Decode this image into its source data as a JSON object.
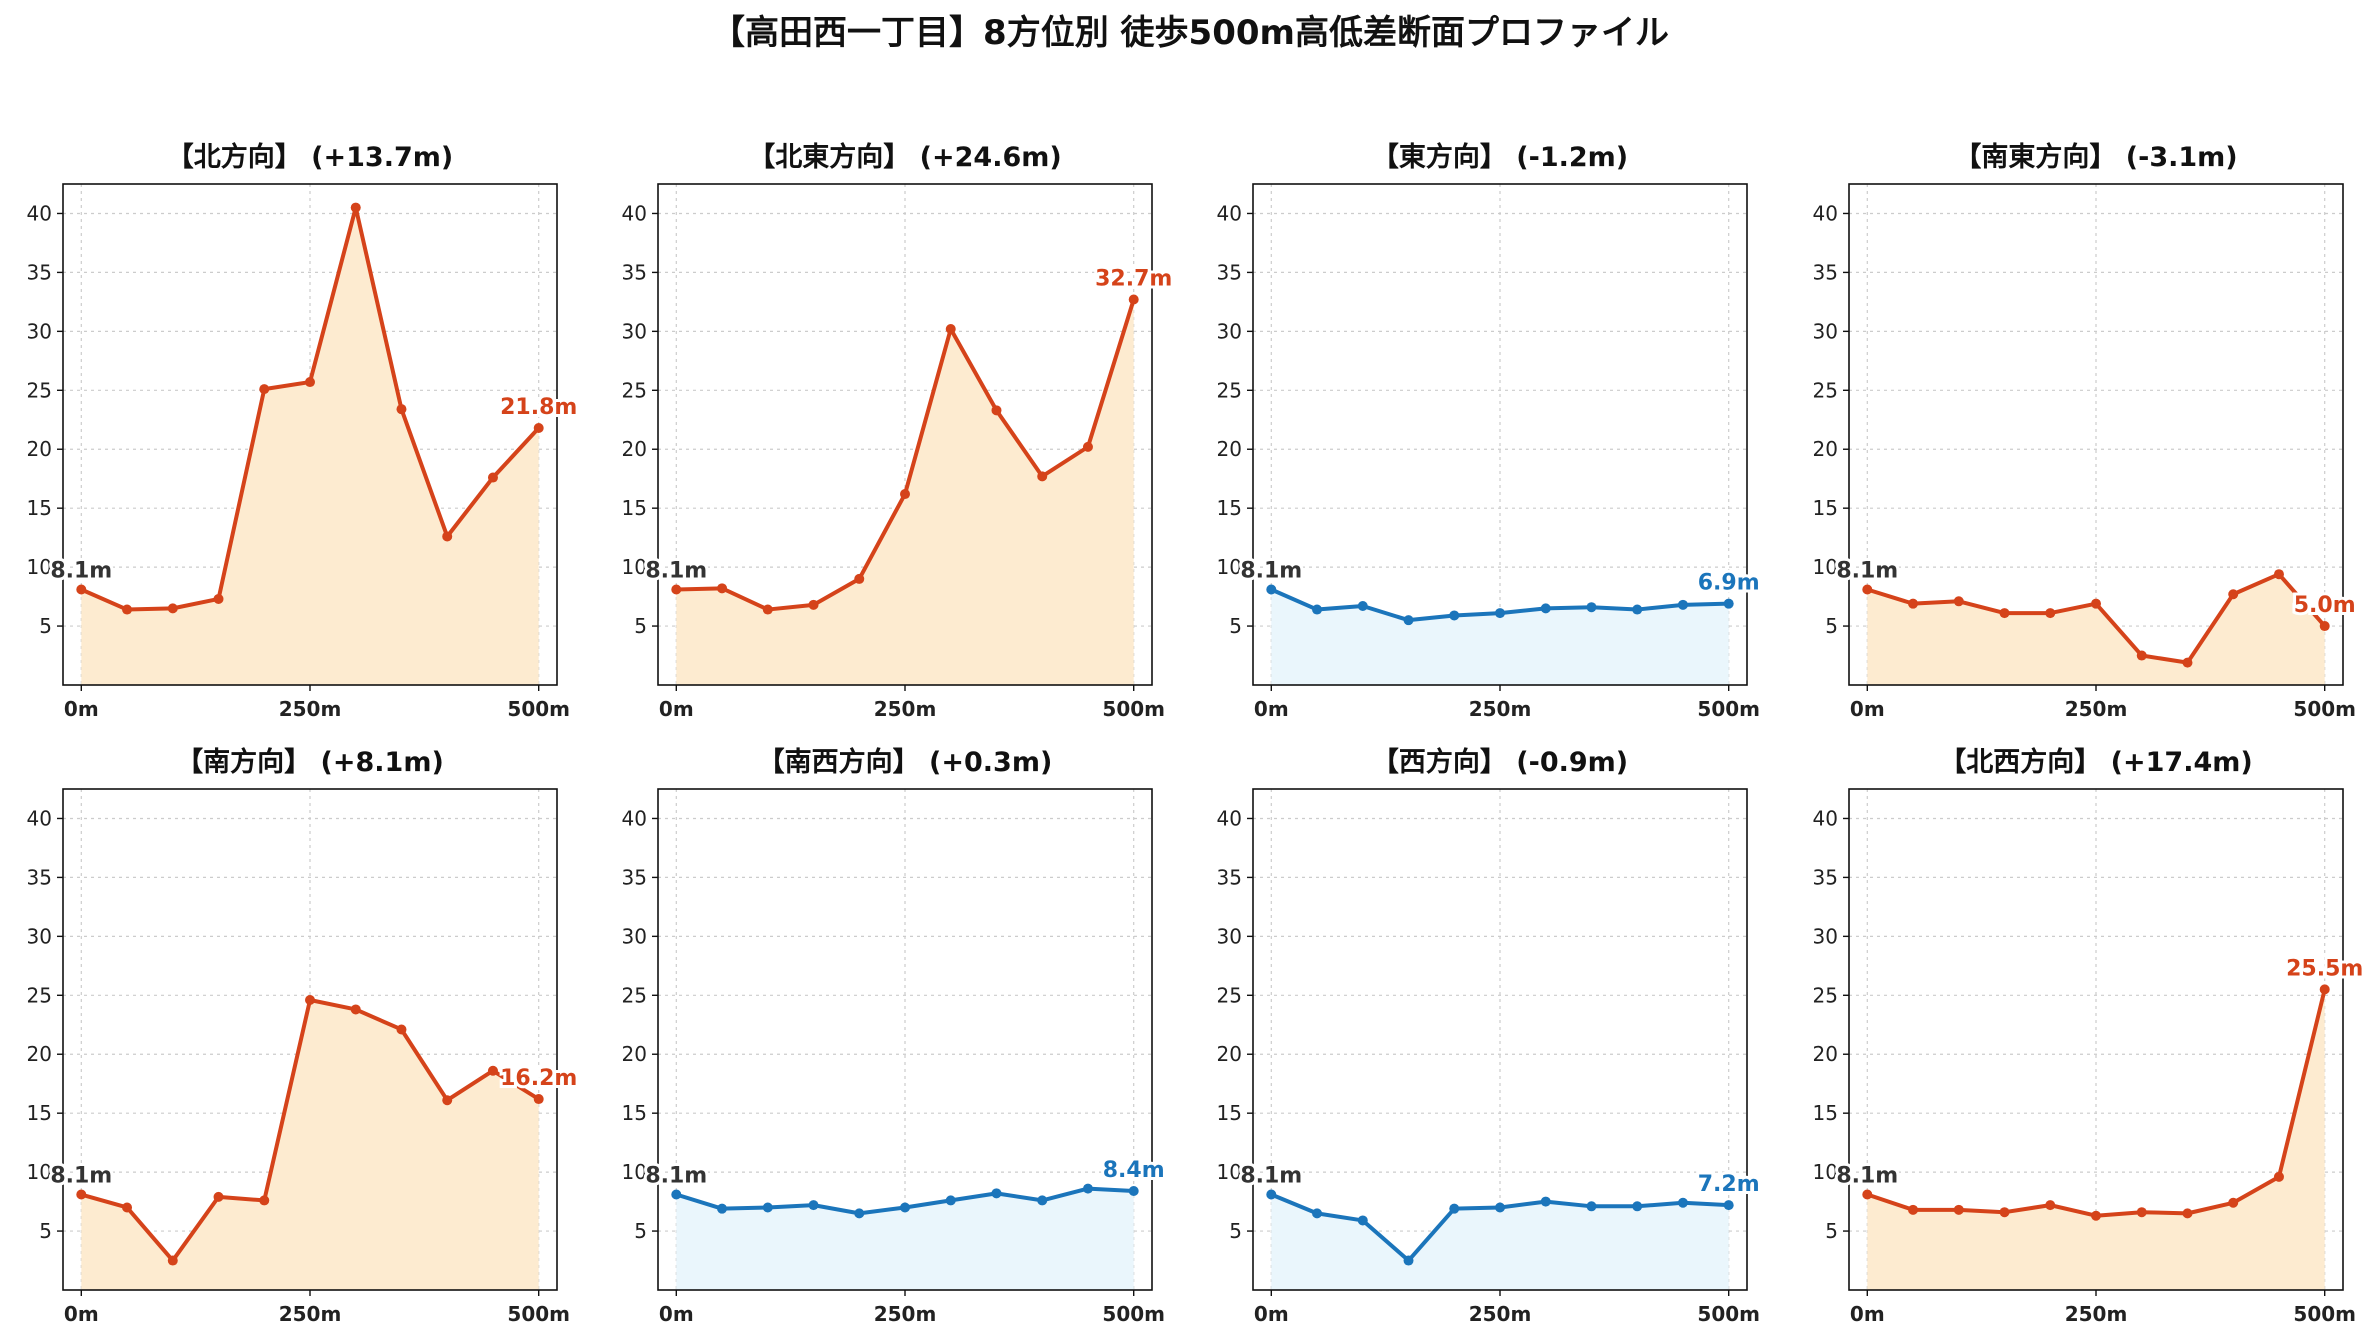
{
  "page_title": "【高田西一丁目】8方位別 徒歩500m高低差断面プロファイル",
  "colors": {
    "up_line": "#d5431a",
    "up_fill": "#fdebd0",
    "down_line": "#1b75bb",
    "down_fill": "#eaf6fc",
    "start_label": "#333333",
    "grid": "#cccccc"
  },
  "chart_data": [
    {
      "type": "area",
      "title": "【北方向】 (+13.7m)",
      "trend": "up",
      "x": [
        0,
        50,
        100,
        150,
        200,
        250,
        300,
        350,
        400,
        450,
        500
      ],
      "y": [
        8.1,
        6.4,
        6.5,
        7.3,
        25.1,
        25.7,
        40.5,
        23.4,
        12.6,
        17.6,
        21.8
      ],
      "xticks": [
        "0m",
        "250m",
        "500m"
      ],
      "yticks": [
        5,
        10,
        15,
        20,
        25,
        30,
        35,
        40
      ],
      "start_label": "8.1m",
      "end_label": "21.8m",
      "xlim": [
        -20,
        520
      ],
      "ylim": [
        0,
        42.5
      ],
      "grid": true
    },
    {
      "type": "area",
      "title": "【北東方向】 (+24.6m)",
      "trend": "up",
      "x": [
        0,
        50,
        100,
        150,
        200,
        250,
        300,
        350,
        400,
        450,
        500
      ],
      "y": [
        8.1,
        8.2,
        6.4,
        6.8,
        9.0,
        16.2,
        30.2,
        23.3,
        17.7,
        20.2,
        32.7
      ],
      "xticks": [
        "0m",
        "250m",
        "500m"
      ],
      "yticks": [
        5,
        10,
        15,
        20,
        25,
        30,
        35,
        40
      ],
      "start_label": "8.1m",
      "end_label": "32.7m",
      "xlim": [
        -20,
        520
      ],
      "ylim": [
        0,
        42.5
      ],
      "grid": true
    },
    {
      "type": "area",
      "title": "【東方向】 (-1.2m)",
      "trend": "down",
      "x": [
        0,
        50,
        100,
        150,
        200,
        250,
        300,
        350,
        400,
        450,
        500
      ],
      "y": [
        8.1,
        6.4,
        6.7,
        5.5,
        5.9,
        6.1,
        6.5,
        6.6,
        6.4,
        6.8,
        6.9
      ],
      "xticks": [
        "0m",
        "250m",
        "500m"
      ],
      "yticks": [
        5,
        10,
        15,
        20,
        25,
        30,
        35,
        40
      ],
      "start_label": "8.1m",
      "end_label": "6.9m",
      "xlim": [
        -20,
        520
      ],
      "ylim": [
        0,
        42.5
      ],
      "grid": true
    },
    {
      "type": "area",
      "title": "【南東方向】 (-3.1m)",
      "trend": "up",
      "x": [
        0,
        50,
        100,
        150,
        200,
        250,
        300,
        350,
        400,
        450,
        500
      ],
      "y": [
        8.1,
        6.9,
        7.1,
        6.1,
        6.1,
        6.9,
        2.5,
        1.9,
        7.7,
        9.4,
        5.0
      ],
      "xticks": [
        "0m",
        "250m",
        "500m"
      ],
      "yticks": [
        5,
        10,
        15,
        20,
        25,
        30,
        35,
        40
      ],
      "start_label": "8.1m",
      "end_label": "5.0m",
      "xlim": [
        -20,
        520
      ],
      "ylim": [
        0,
        42.5
      ],
      "grid": true
    },
    {
      "type": "area",
      "title": "【南方向】 (+8.1m)",
      "trend": "up",
      "x": [
        0,
        50,
        100,
        150,
        200,
        250,
        300,
        350,
        400,
        450,
        500
      ],
      "y": [
        8.1,
        7.0,
        2.5,
        7.9,
        7.6,
        24.6,
        23.8,
        22.1,
        16.1,
        18.6,
        16.2
      ],
      "xticks": [
        "0m",
        "250m",
        "500m"
      ],
      "yticks": [
        5,
        10,
        15,
        20,
        25,
        30,
        35,
        40
      ],
      "start_label": "8.1m",
      "end_label": "16.2m",
      "xlim": [
        -20,
        520
      ],
      "ylim": [
        0,
        42.5
      ],
      "grid": true
    },
    {
      "type": "area",
      "title": "【南西方向】 (+0.3m)",
      "trend": "down",
      "x": [
        0,
        50,
        100,
        150,
        200,
        250,
        300,
        350,
        400,
        450,
        500
      ],
      "y": [
        8.1,
        6.9,
        7.0,
        7.2,
        6.5,
        7.0,
        7.6,
        8.2,
        7.6,
        8.6,
        8.4
      ],
      "xticks": [
        "0m",
        "250m",
        "500m"
      ],
      "yticks": [
        5,
        10,
        15,
        20,
        25,
        30,
        35,
        40
      ],
      "start_label": "8.1m",
      "end_label": "8.4m",
      "xlim": [
        -20,
        520
      ],
      "ylim": [
        0,
        42.5
      ],
      "grid": true
    },
    {
      "type": "area",
      "title": "【西方向】 (-0.9m)",
      "trend": "down",
      "x": [
        0,
        50,
        100,
        150,
        200,
        250,
        300,
        350,
        400,
        450,
        500
      ],
      "y": [
        8.1,
        6.5,
        5.9,
        2.5,
        6.9,
        7.0,
        7.5,
        7.1,
        7.1,
        7.4,
        7.2
      ],
      "xticks": [
        "0m",
        "250m",
        "500m"
      ],
      "yticks": [
        5,
        10,
        15,
        20,
        25,
        30,
        35,
        40
      ],
      "start_label": "8.1m",
      "end_label": "7.2m",
      "xlim": [
        -20,
        520
      ],
      "ylim": [
        0,
        42.5
      ],
      "grid": true
    },
    {
      "type": "area",
      "title": "【北西方向】 (+17.4m)",
      "trend": "up",
      "x": [
        0,
        50,
        100,
        150,
        200,
        250,
        300,
        350,
        400,
        450,
        500
      ],
      "y": [
        8.1,
        6.8,
        6.8,
        6.6,
        7.2,
        6.3,
        6.6,
        6.5,
        7.4,
        9.6,
        25.5
      ],
      "xticks": [
        "0m",
        "250m",
        "500m"
      ],
      "yticks": [
        5,
        10,
        15,
        20,
        25,
        30,
        35,
        40
      ],
      "start_label": "8.1m",
      "end_label": "25.5m",
      "xlim": [
        -20,
        520
      ],
      "ylim": [
        0,
        42.5
      ],
      "grid": true
    }
  ]
}
